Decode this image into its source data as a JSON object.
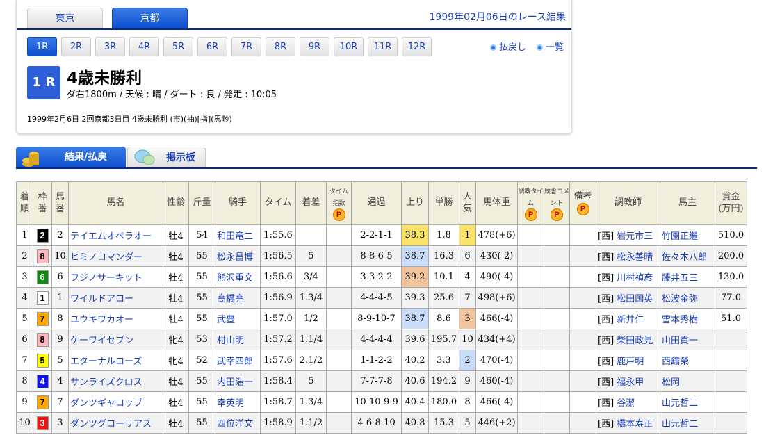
{
  "venue_tabs": [
    {
      "label": "東京",
      "active": false
    },
    {
      "label": "京都",
      "active": true
    }
  ],
  "date_title": "1999年02月06日のレース結果",
  "race_buttons": [
    "1R",
    "2R",
    "3R",
    "4R",
    "5R",
    "6R",
    "7R",
    "8R",
    "9R",
    "10R",
    "11R",
    "12R"
  ],
  "active_race": "1R",
  "links": {
    "payout": "払戻し",
    "list": "一覧"
  },
  "race": {
    "badge": "1 R",
    "name": "4歳未勝利",
    "info": "ダ右1800m / 天候 : 晴 / ダート : 良 / 発走 : 10:05",
    "sub": "1999年2月6日 2回京都3日目 4歳未勝利  (市)(抽)[指](馬齢)"
  },
  "section_tabs": {
    "results": "結果/払戻",
    "board": "掲示板"
  },
  "table": {
    "headers": [
      "着順",
      "枠番",
      "馬番",
      "馬名",
      "性齢",
      "斤量",
      "騎手",
      "タイム",
      "着差",
      "タイム指数",
      "通過",
      "上り",
      "単勝",
      "人気",
      "馬体重",
      "調教タイム",
      "厩舎コメント",
      "備考",
      "調教師",
      "馬主",
      "賞金(万円)"
    ],
    "rows": [
      {
        "pos": "1",
        "waku": "2",
        "num": "2",
        "horse": "テイエムオペラオー",
        "sex_age": "牡4",
        "weight": "54",
        "jockey": "和田竜二",
        "time": "1:55.6",
        "margin": "",
        "passing": "2-2-1-1",
        "last3f": "38.3",
        "last3f_rank": 1,
        "odds": "1.8",
        "pop": "1",
        "pop_rank": 1,
        "body": "478(+6)",
        "region": "[西]",
        "trainer": "岩元市三",
        "owner": "竹園正繼",
        "prize": "510.0"
      },
      {
        "pos": "2",
        "waku": "8",
        "num": "10",
        "horse": "ヒミノコマンダー",
        "sex_age": "牡4",
        "weight": "55",
        "jockey": "松永昌博",
        "time": "1:56.5",
        "margin": "5",
        "passing": "8-8-6-5",
        "last3f": "38.7",
        "last3f_rank": 2,
        "odds": "16.3",
        "pop": "6",
        "pop_rank": 0,
        "body": "430(-2)",
        "region": "[西]",
        "trainer": "松永善晴",
        "owner": "佐々木八郎",
        "prize": "200.0"
      },
      {
        "pos": "3",
        "waku": "6",
        "num": "6",
        "horse": "フジノサーキット",
        "sex_age": "牡4",
        "weight": "55",
        "jockey": "熊沢重文",
        "time": "1:56.6",
        "margin": "3/4",
        "passing": "3-3-2-2",
        "last3f": "39.2",
        "last3f_rank": 3,
        "odds": "10.1",
        "pop": "4",
        "pop_rank": 0,
        "body": "490(-4)",
        "region": "[西]",
        "trainer": "川村禎彦",
        "owner": "藤井五三",
        "prize": "130.0"
      },
      {
        "pos": "4",
        "waku": "1",
        "num": "1",
        "horse": "ワイルドアロー",
        "sex_age": "牡4",
        "weight": "55",
        "jockey": "高橋亮",
        "time": "1:56.9",
        "margin": "1.3/4",
        "passing": "4-4-4-5",
        "last3f": "39.3",
        "last3f_rank": 0,
        "odds": "25.6",
        "pop": "7",
        "pop_rank": 0,
        "body": "498(+6)",
        "region": "[西]",
        "trainer": "松田国英",
        "owner": "松波金弥",
        "prize": "77.0"
      },
      {
        "pos": "5",
        "waku": "7",
        "num": "8",
        "horse": "ユウキワカオー",
        "sex_age": "牡4",
        "weight": "55",
        "jockey": "武豊",
        "time": "1:57.0",
        "margin": "1/2",
        "passing": "8-9-10-7",
        "last3f": "38.7",
        "last3f_rank": 2,
        "odds": "8.6",
        "pop": "3",
        "pop_rank": 3,
        "body": "466(-4)",
        "region": "[西]",
        "trainer": "新井仁",
        "owner": "雪本秀樹",
        "prize": "51.0"
      },
      {
        "pos": "6",
        "waku": "8",
        "num": "9",
        "horse": "ケーワイセブン",
        "sex_age": "牝4",
        "weight": "53",
        "jockey": "村山明",
        "time": "1:57.2",
        "margin": "1.1/4",
        "passing": "4-4-4-4",
        "last3f": "39.6",
        "last3f_rank": 0,
        "odds": "195.7",
        "pop": "10",
        "pop_rank": 0,
        "body": "434(+4)",
        "region": "[西]",
        "trainer": "柴田政見",
        "owner": "山田貢一",
        "prize": ""
      },
      {
        "pos": "7",
        "waku": "5",
        "num": "5",
        "horse": "エターナルローズ",
        "sex_age": "牝4",
        "weight": "52",
        "jockey": "武幸四郎",
        "time": "1:57.6",
        "margin": "2.1/2",
        "passing": "1-1-2-2",
        "last3f": "40.2",
        "last3f_rank": 0,
        "odds": "3.3",
        "pop": "2",
        "pop_rank": 2,
        "body": "470(-4)",
        "region": "[西]",
        "trainer": "鹿戸明",
        "owner": "西舘榮",
        "prize": ""
      },
      {
        "pos": "8",
        "waku": "4",
        "num": "4",
        "horse": "サンライズクロス",
        "sex_age": "牡4",
        "weight": "55",
        "jockey": "内田浩一",
        "time": "1:58.4",
        "margin": "5",
        "passing": "7-7-7-8",
        "last3f": "40.6",
        "last3f_rank": 0,
        "odds": "194.2",
        "pop": "9",
        "pop_rank": 0,
        "body": "460(-4)",
        "region": "[西]",
        "trainer": "福永甲",
        "owner": "松岡",
        "prize": ""
      },
      {
        "pos": "9",
        "waku": "7",
        "num": "7",
        "horse": "ダンツギャロップ",
        "sex_age": "牡4",
        "weight": "55",
        "jockey": "幸英明",
        "time": "1:58.7",
        "margin": "1.3/4",
        "passing": "10-10-9-9",
        "last3f": "40.4",
        "last3f_rank": 0,
        "odds": "180.0",
        "pop": "8",
        "pop_rank": 0,
        "body": "466(-4)",
        "region": "[西]",
        "trainer": "谷潔",
        "owner": "山元哲二",
        "prize": ""
      },
      {
        "pos": "10",
        "waku": "3",
        "num": "3",
        "horse": "ダンツグローリアス",
        "sex_age": "牡4",
        "weight": "55",
        "jockey": "四位洋文",
        "time": "1:58.9",
        "margin": "1.1/2",
        "passing": "4-6-8-10",
        "last3f": "40.8",
        "last3f_rank": 0,
        "odds": "15.3",
        "pop": "5",
        "pop_rank": 0,
        "body": "446(+2)",
        "region": "[西]",
        "trainer": "橋本寿正",
        "owner": "山元哲二",
        "prize": ""
      }
    ]
  },
  "colors": {
    "accent": "#0d4fcf",
    "rank1": "#fbe36b",
    "rank2": "#c9dcfa",
    "rank3": "#f0c59e",
    "waku": {
      "1": [
        "#ffffff",
        "#000"
      ],
      "2": [
        "#000000",
        "#fff"
      ],
      "3": [
        "#ee1111",
        "#fff"
      ],
      "4": [
        "#1111ee",
        "#fff"
      ],
      "5": [
        "#ffff00",
        "#000"
      ],
      "6": [
        "#118811",
        "#fff"
      ],
      "7": [
        "#ffa500",
        "#000"
      ],
      "8": [
        "#ffb6c1",
        "#000"
      ]
    }
  }
}
